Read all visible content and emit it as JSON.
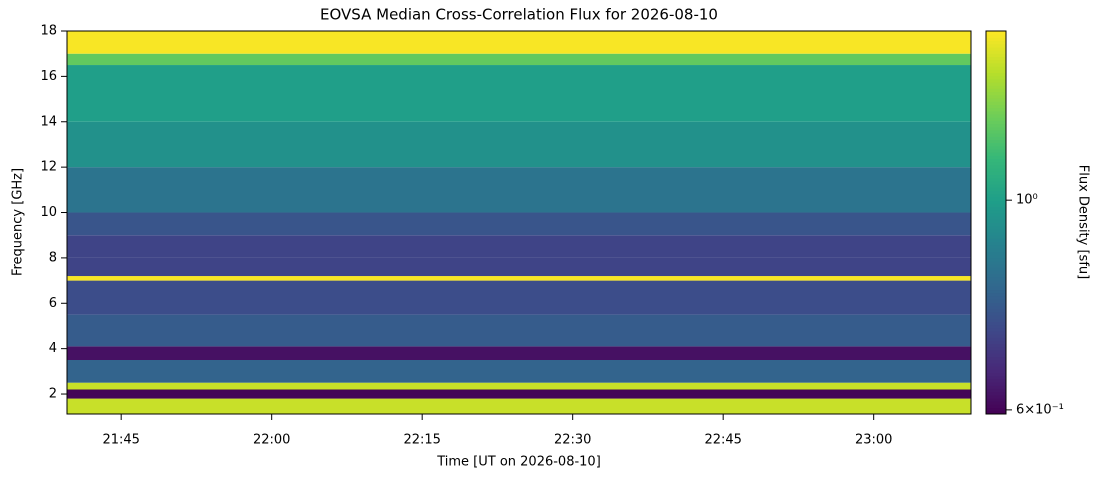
{
  "chart_data": {
    "type": "heatmap",
    "title": "EOVSA Median Cross-Correlation Flux for 2026-08-10",
    "x_label": "Time [UT on 2026-08-10]",
    "y_label": "Frequency [GHz]",
    "colorbar_label": "Flux Density [sfu]",
    "colormap": "viridis",
    "color_scale": "log",
    "clim": [
      0.594,
      1.51
    ],
    "cticks": [
      {
        "value": 0.6,
        "label": "6×10⁻¹"
      },
      {
        "value": 1,
        "label": "10⁰"
      }
    ],
    "xlim": [
      1299.6,
      1389.7
    ],
    "xticks": [
      {
        "value": 1305,
        "label": "21:45"
      },
      {
        "value": 1320,
        "label": "22:00"
      },
      {
        "value": 1335,
        "label": "22:15"
      },
      {
        "value": 1350,
        "label": "22:30"
      },
      {
        "value": 1365,
        "label": "22:45"
      },
      {
        "value": 1380,
        "label": "23:00"
      }
    ],
    "ylim": [
      1.12,
      18
    ],
    "yticks": [
      2,
      4,
      6,
      8,
      10,
      12,
      14,
      16,
      18
    ],
    "y_edges": [
      1.12,
      1.8,
      2.2,
      2.5,
      3.5,
      4.1,
      5.5,
      7.0,
      7.2,
      8.0,
      9.0,
      10.0,
      12.0,
      14.0,
      16.5,
      17.0,
      18.0
    ],
    "values": [
      1.4,
      0.6,
      1.4,
      0.8,
      0.62,
      0.78,
      0.74,
      1.5,
      0.72,
      0.72,
      0.76,
      0.85,
      0.95,
      1.0,
      1.2,
      1.5
    ]
  }
}
